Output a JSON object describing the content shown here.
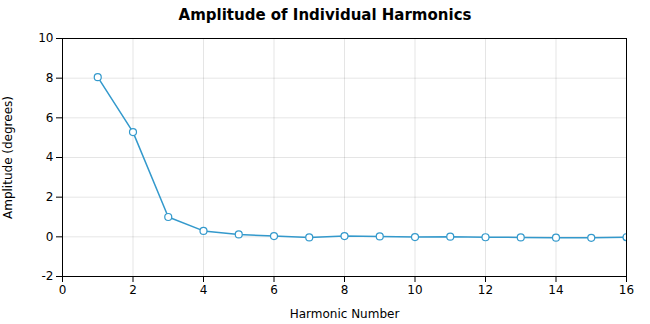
{
  "chart_data": {
    "type": "line",
    "title": "Amplitude of Individual Harmonics",
    "xlabel": "Harmonic Number",
    "ylabel": "Amplitude (degrees)",
    "x": [
      1,
      2,
      3,
      4,
      5,
      6,
      7,
      8,
      9,
      10,
      11,
      12,
      13,
      14,
      15,
      16
    ],
    "y": [
      8.05,
      5.28,
      1.0,
      0.3,
      0.12,
      0.04,
      -0.03,
      0.04,
      0.02,
      -0.01,
      0.01,
      -0.02,
      -0.03,
      -0.04,
      -0.05,
      -0.02
    ],
    "xlim": [
      0,
      16
    ],
    "xticks": [
      0,
      2,
      4,
      6,
      8,
      10,
      12,
      14,
      16
    ],
    "ylim": [
      -2,
      10
    ],
    "yticks": [
      -2,
      0,
      2,
      4,
      6,
      8,
      10
    ],
    "color": "#3399CC",
    "marker": "circle",
    "grid": true
  }
}
